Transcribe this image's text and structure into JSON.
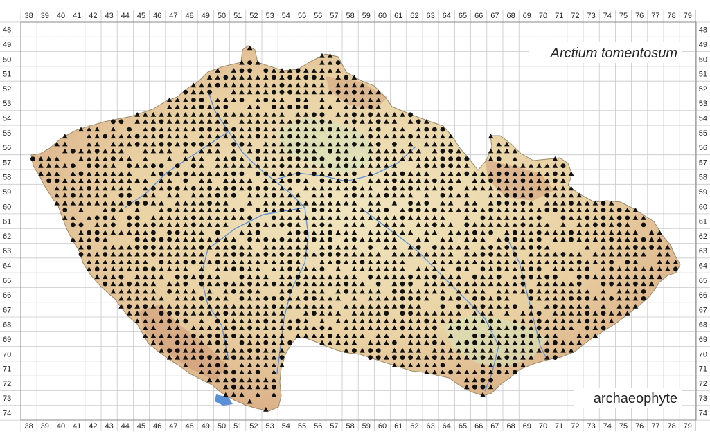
{
  "map": {
    "species_title": "Arctium tomentosum",
    "status_label": "archaeophyte",
    "colors": {
      "grid": "#c8c8c8",
      "frame": "#888888",
      "relief_low": "#efe2b8",
      "relief_mid": "#e7c99a",
      "relief_high": "#cf9a7a",
      "lowland_green": "#d5e3bb",
      "river": "#5b8fd6",
      "marker": "#111111"
    },
    "columns": [
      "38",
      "39",
      "40",
      "41",
      "42",
      "43",
      "44",
      "45",
      "46",
      "47",
      "48",
      "49",
      "50",
      "51",
      "52",
      "53",
      "54",
      "55",
      "56",
      "57",
      "58",
      "59",
      "60",
      "61",
      "62",
      "63",
      "64",
      "65",
      "66",
      "67",
      "68",
      "69",
      "70",
      "71",
      "72",
      "73",
      "74",
      "75",
      "76",
      "77",
      "78",
      "79"
    ],
    "rows": [
      "48",
      "49",
      "50",
      "51",
      "52",
      "53",
      "54",
      "55",
      "56",
      "57",
      "58",
      "59",
      "60",
      "61",
      "62",
      "63",
      "64",
      "65",
      "66",
      "67",
      "68",
      "69",
      "70",
      "71",
      "72",
      "73",
      "74"
    ],
    "legend": {
      "circle": "circle-marker",
      "triangle": "triangle-marker"
    }
  }
}
